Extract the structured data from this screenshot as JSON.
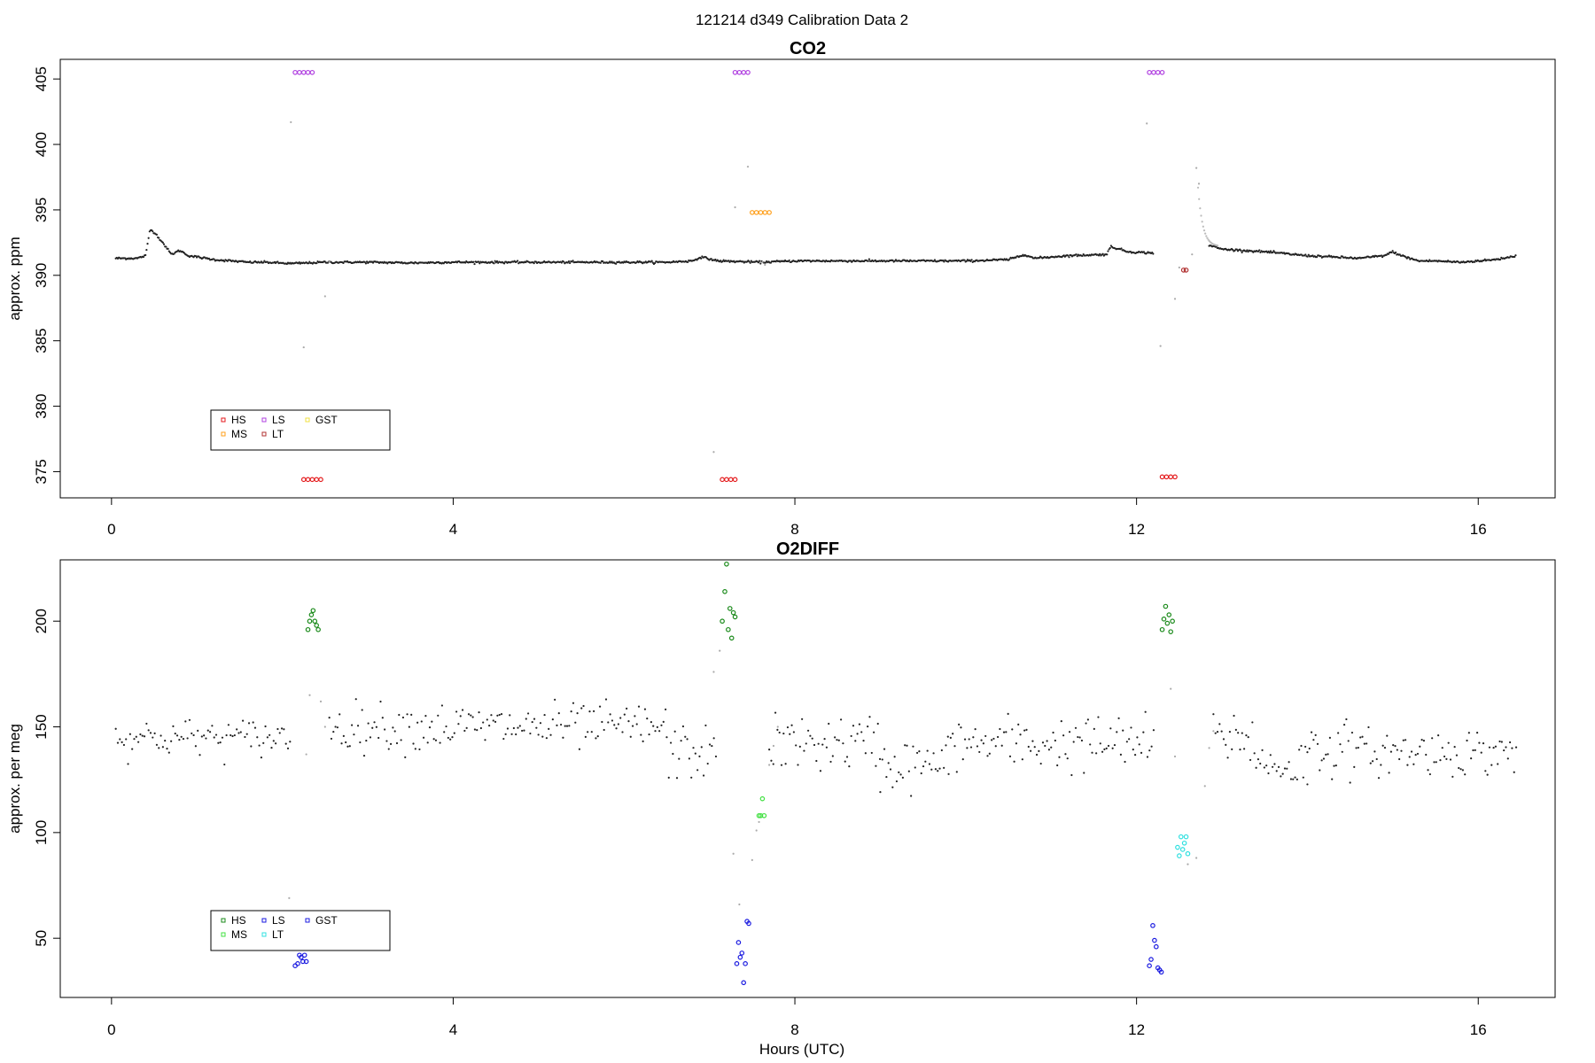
{
  "figure": {
    "title": "121214   d349   Calibration Data 2",
    "xlabel": "Hours (UTC)"
  },
  "chart_data": [
    {
      "type": "scatter",
      "title": "CO2",
      "ylabel": "approx. ppm",
      "xlim": [
        -0.6,
        16.9
      ],
      "ylim": [
        373,
        406.5
      ],
      "xticks": [
        0,
        4,
        8,
        12,
        16
      ],
      "yticks": [
        375,
        380,
        385,
        390,
        395,
        400,
        405
      ],
      "baseline": [
        [
          0.05,
          391.3
        ],
        [
          0.3,
          391.3
        ],
        [
          0.4,
          391.5
        ],
        [
          0.45,
          393.5
        ],
        [
          0.5,
          393.3
        ],
        [
          0.6,
          392.5
        ],
        [
          0.7,
          391.6
        ],
        [
          0.8,
          391.9
        ],
        [
          0.9,
          391.5
        ],
        [
          1.2,
          391.2
        ],
        [
          1.4,
          391.1
        ],
        [
          1.6,
          391.0
        ],
        [
          1.8,
          391.0
        ],
        [
          2.1,
          390.9
        ],
        [
          2.5,
          391.0
        ],
        [
          3.0,
          391.0
        ],
        [
          3.5,
          390.95
        ],
        [
          4.0,
          391.0
        ],
        [
          4.5,
          391.0
        ],
        [
          5.0,
          391.0
        ],
        [
          5.5,
          391.0
        ],
        [
          6.0,
          391.0
        ],
        [
          6.5,
          391.0
        ],
        [
          6.8,
          391.1
        ],
        [
          6.9,
          391.4
        ],
        [
          7.1,
          391.1
        ],
        [
          7.6,
          391.0
        ],
        [
          8.0,
          391.1
        ],
        [
          8.5,
          391.1
        ],
        [
          9.0,
          391.1
        ],
        [
          9.5,
          391.1
        ],
        [
          10.0,
          391.1
        ],
        [
          10.5,
          391.2
        ],
        [
          10.7,
          391.6
        ],
        [
          10.8,
          391.3
        ],
        [
          11.2,
          391.5
        ],
        [
          11.65,
          391.6
        ],
        [
          11.7,
          392.2
        ],
        [
          11.9,
          391.8
        ],
        [
          12.2,
          391.7
        ]
      ],
      "baseline2": [
        [
          12.85,
          392.3
        ],
        [
          13.0,
          392.0
        ],
        [
          13.5,
          391.8
        ],
        [
          14.0,
          391.5
        ],
        [
          14.3,
          391.4
        ],
        [
          14.6,
          391.3
        ],
        [
          14.9,
          391.5
        ],
        [
          15.0,
          391.8
        ],
        [
          15.1,
          391.5
        ],
        [
          15.3,
          391.1
        ],
        [
          15.5,
          391.1
        ],
        [
          15.8,
          391.0
        ],
        [
          16.0,
          391.1
        ],
        [
          16.2,
          391.2
        ],
        [
          16.45,
          391.5
        ]
      ],
      "series": [
        {
          "name": "HS",
          "color": "#e41a1c",
          "points": [
            [
              2.25,
              374.4
            ],
            [
              2.3,
              374.4
            ],
            [
              2.35,
              374.4
            ],
            [
              2.4,
              374.4
            ],
            [
              2.45,
              374.4
            ],
            [
              7.15,
              374.4
            ],
            [
              7.2,
              374.4
            ],
            [
              7.25,
              374.4
            ],
            [
              7.3,
              374.4
            ],
            [
              12.3,
              374.6
            ],
            [
              12.35,
              374.6
            ],
            [
              12.4,
              374.6
            ],
            [
              12.45,
              374.6
            ]
          ]
        },
        {
          "name": "MS",
          "color": "#ff9f1a",
          "points": [
            [
              7.5,
              394.8
            ],
            [
              7.55,
              394.8
            ],
            [
              7.6,
              394.8
            ],
            [
              7.65,
              394.8
            ],
            [
              7.7,
              394.8
            ]
          ]
        },
        {
          "name": "LS",
          "color": "#b040e0",
          "points": [
            [
              2.15,
              405.5
            ],
            [
              2.2,
              405.5
            ],
            [
              2.25,
              405.5
            ],
            [
              2.3,
              405.5
            ],
            [
              2.35,
              405.5
            ],
            [
              7.3,
              405.5
            ],
            [
              7.35,
              405.5
            ],
            [
              7.4,
              405.5
            ],
            [
              7.45,
              405.5
            ],
            [
              12.15,
              405.5
            ],
            [
              12.2,
              405.5
            ],
            [
              12.25,
              405.5
            ],
            [
              12.3,
              405.5
            ]
          ]
        },
        {
          "name": "LT",
          "color": "#b03030",
          "points": [
            [
              12.55,
              390.4
            ],
            [
              12.58,
              390.4
            ]
          ]
        },
        {
          "name": "GST",
          "color": "#f0e040",
          "points": []
        }
      ],
      "legend": {
        "position": "bottom-left",
        "entries": [
          {
            "label": "HS",
            "color": "#e41a1c"
          },
          {
            "label": "MS",
            "color": "#ff9f1a"
          },
          {
            "label": "LS",
            "color": "#b040e0"
          },
          {
            "label": "LT",
            "color": "#b03030"
          },
          {
            "label": "GST",
            "color": "#f0e040"
          }
        ]
      }
    },
    {
      "type": "scatter",
      "title": "O2DIFF",
      "ylabel": "approx. per meg",
      "xlim": [
        -0.6,
        16.9
      ],
      "ylim": [
        22,
        229
      ],
      "xticks": [
        0,
        4,
        8,
        12,
        16
      ],
      "yticks": [
        50,
        100,
        150,
        200
      ],
      "background_segments": [
        [
          0.05,
          2.1,
          145,
          8
        ],
        [
          2.55,
          6.5,
          150,
          10
        ],
        [
          6.5,
          7.1,
          138,
          12
        ],
        [
          7.7,
          9.0,
          142,
          12
        ],
        [
          9.0,
          9.8,
          132,
          12
        ],
        [
          9.8,
          12.2,
          142,
          12
        ],
        [
          12.9,
          13.4,
          145,
          12
        ],
        [
          13.4,
          14.0,
          132,
          12
        ],
        [
          14.0,
          14.5,
          140,
          12
        ],
        [
          14.5,
          16.45,
          138,
          10
        ]
      ],
      "series": [
        {
          "name": "HS",
          "color": "#1a8a1a",
          "points": [
            [
              2.3,
              196
            ],
            [
              2.32,
              200
            ],
            [
              2.34,
              203
            ],
            [
              2.36,
              205
            ],
            [
              2.38,
              200
            ],
            [
              2.4,
              198
            ],
            [
              2.42,
              196
            ],
            [
              7.15,
              200
            ],
            [
              7.18,
              214
            ],
            [
              7.2,
              227
            ],
            [
              7.22,
              196
            ],
            [
              7.24,
              206
            ],
            [
              7.26,
              192
            ],
            [
              7.28,
              204
            ],
            [
              7.3,
              202
            ],
            [
              12.3,
              196
            ],
            [
              12.32,
              201
            ],
            [
              12.34,
              207
            ],
            [
              12.36,
              199
            ],
            [
              12.38,
              203
            ],
            [
              12.4,
              195
            ],
            [
              12.42,
              200
            ]
          ]
        },
        {
          "name": "MS",
          "color": "#40e040",
          "points": [
            [
              7.58,
              108
            ],
            [
              7.6,
              108
            ],
            [
              7.62,
              116
            ],
            [
              7.64,
              108
            ]
          ]
        },
        {
          "name": "LS",
          "color": "#1a1ae0",
          "points": [
            [
              2.15,
              37
            ],
            [
              2.18,
              38
            ],
            [
              2.2,
              42
            ],
            [
              2.22,
              41
            ],
            [
              2.24,
              39
            ],
            [
              2.26,
              42
            ],
            [
              2.28,
              39
            ],
            [
              7.32,
              38
            ],
            [
              7.34,
              48
            ],
            [
              7.36,
              41
            ],
            [
              7.38,
              43
            ],
            [
              7.4,
              29
            ],
            [
              7.42,
              38
            ],
            [
              7.44,
              58
            ],
            [
              7.46,
              57
            ],
            [
              12.15,
              37
            ],
            [
              12.17,
              40
            ],
            [
              12.19,
              56
            ],
            [
              12.21,
              49
            ],
            [
              12.23,
              46
            ],
            [
              12.25,
              36
            ],
            [
              12.27,
              35
            ],
            [
              12.29,
              34
            ]
          ]
        },
        {
          "name": "LT",
          "color": "#30e0e0",
          "points": [
            [
              12.48,
              93
            ],
            [
              12.5,
              89
            ],
            [
              12.52,
              98
            ],
            [
              12.54,
              92
            ],
            [
              12.56,
              95
            ],
            [
              12.58,
              98
            ],
            [
              12.6,
              90
            ]
          ]
        },
        {
          "name": "GST",
          "color": "#1a1ae0",
          "points": []
        }
      ],
      "legend": {
        "position": "bottom-left",
        "entries": [
          {
            "label": "HS",
            "color": "#1a8a1a"
          },
          {
            "label": "MS",
            "color": "#40e040"
          },
          {
            "label": "LS",
            "color": "#1a1ae0"
          },
          {
            "label": "LT",
            "color": "#30e0e0"
          },
          {
            "label": "GST",
            "color": "#1a1ae0"
          }
        ]
      }
    }
  ]
}
